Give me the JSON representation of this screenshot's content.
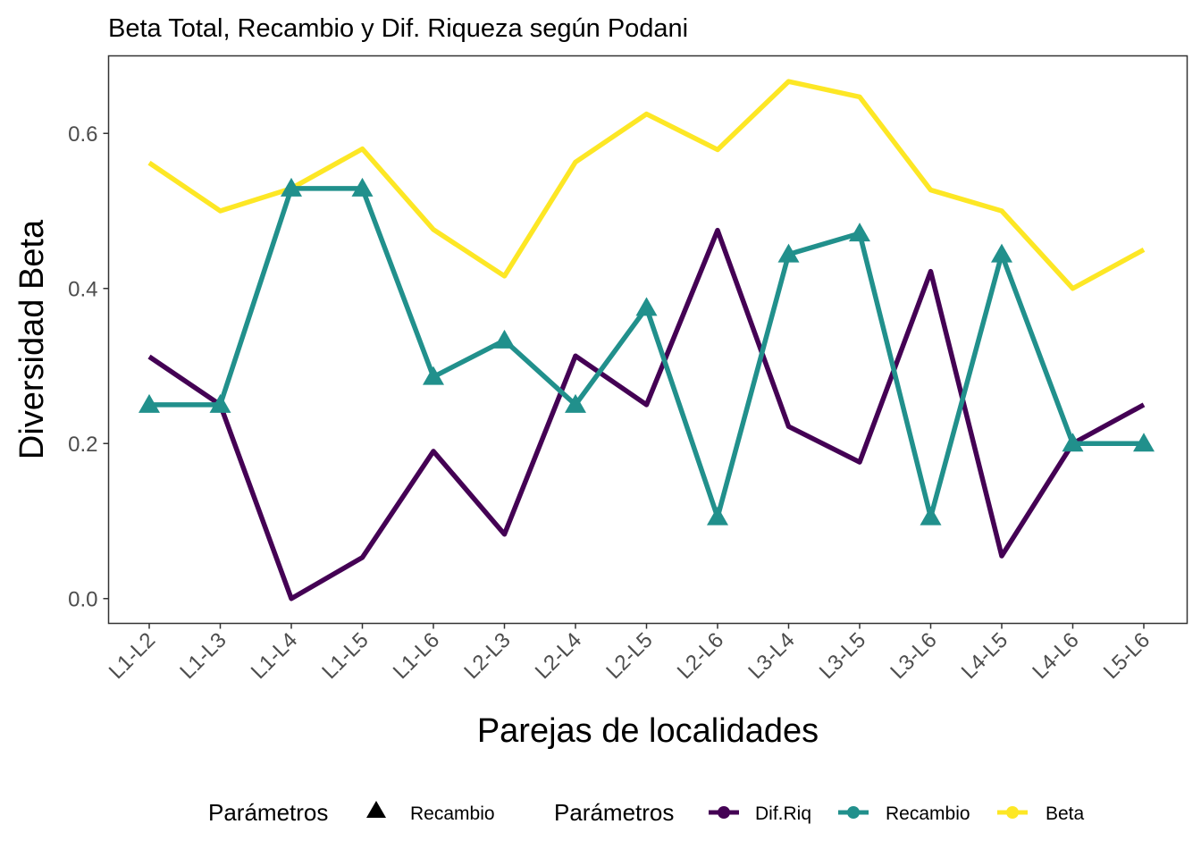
{
  "chart_data": {
    "type": "line",
    "title": "Beta Total, Recambio y Dif. Riqueza según Podani",
    "xlabel": "Parejas de localidades",
    "ylabel": "Diversidad Beta",
    "categories": [
      "L1-L2",
      "L1-L3",
      "L1-L4",
      "L1-L5",
      "L1-L6",
      "L2-L3",
      "L2-L4",
      "L2-L5",
      "L2-L6",
      "L3-L4",
      "L3-L5",
      "L3-L6",
      "L4-L5",
      "L4-L6",
      "L5-L6"
    ],
    "y_ticks": [
      "0.0",
      "0.2",
      "0.4",
      "0.6"
    ],
    "y_tick_values": [
      0.0,
      0.2,
      0.4,
      0.6
    ],
    "ylim": [
      -0.032,
      0.7
    ],
    "grid": false,
    "legend_position": "bottom",
    "series": [
      {
        "name": "Dif.Riq",
        "color": "#440154",
        "marker": "none",
        "values": [
          0.312,
          0.25,
          0.0,
          0.053,
          0.19,
          0.083,
          0.313,
          0.25,
          0.475,
          0.222,
          0.176,
          0.422,
          0.055,
          0.2,
          0.25
        ]
      },
      {
        "name": "Recambio",
        "color": "#21908C",
        "marker": "triangle",
        "values": [
          0.25,
          0.25,
          0.529,
          0.529,
          0.286,
          0.333,
          0.25,
          0.375,
          0.105,
          0.444,
          0.471,
          0.105,
          0.444,
          0.2,
          0.2
        ]
      },
      {
        "name": "Beta",
        "color": "#FDE725",
        "marker": "none",
        "values": [
          0.562,
          0.5,
          0.529,
          0.58,
          0.476,
          0.416,
          0.563,
          0.625,
          0.579,
          0.667,
          0.647,
          0.527,
          0.5,
          0.4,
          0.45
        ]
      }
    ]
  },
  "legend": {
    "shape_title": "Parámetros",
    "shape_item": "Recambio",
    "color_title": "Parámetros",
    "color_items": [
      "Dif.Riq",
      "Recambio",
      "Beta"
    ]
  }
}
